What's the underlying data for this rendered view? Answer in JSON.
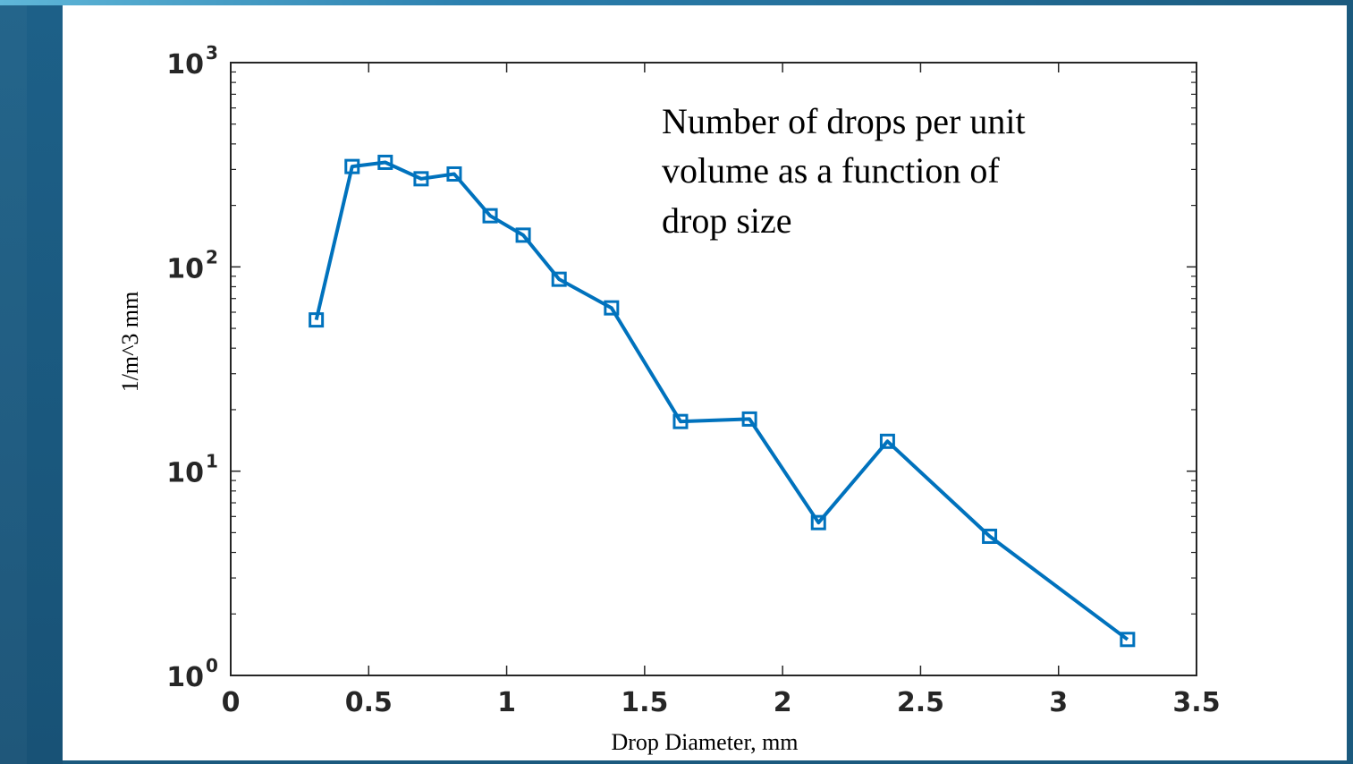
{
  "chart_data": {
    "type": "line",
    "title": "",
    "annotation": [
      "Number of drops per unit",
      "volume as a  function of",
      "drop size"
    ],
    "xlabel": "Drop Diameter, mm",
    "ylabel": "1/m^3 mm",
    "xlim": [
      0,
      3.5
    ],
    "ylim": [
      1,
      1000
    ],
    "yscale": "log",
    "grid": false,
    "x_ticks": [
      {
        "value": 0,
        "label": "0"
      },
      {
        "value": 0.5,
        "label": "0.5"
      },
      {
        "value": 1,
        "label": "1"
      },
      {
        "value": 1.5,
        "label": "1.5"
      },
      {
        "value": 2,
        "label": "2"
      },
      {
        "value": 2.5,
        "label": "2.5"
      },
      {
        "value": 3,
        "label": "3"
      },
      {
        "value": 3.5,
        "label": "3.5"
      }
    ],
    "y_ticks": [
      {
        "value": 1,
        "base": "10",
        "exp": "0"
      },
      {
        "value": 10,
        "base": "10",
        "exp": "1"
      },
      {
        "value": 100,
        "base": "10",
        "exp": "2"
      },
      {
        "value": 1000,
        "base": "10",
        "exp": "3"
      }
    ],
    "series": [
      {
        "color": "#0072bd",
        "marker": "square",
        "x": [
          0.31,
          0.44,
          0.56,
          0.69,
          0.81,
          0.94,
          1.06,
          1.19,
          1.38,
          1.63,
          1.88,
          2.13,
          2.38,
          2.75,
          3.25
        ],
        "y": [
          55,
          310,
          325,
          270,
          285,
          178,
          143,
          87,
          63,
          17.5,
          18,
          5.6,
          14,
          4.8,
          1.5
        ]
      }
    ]
  }
}
